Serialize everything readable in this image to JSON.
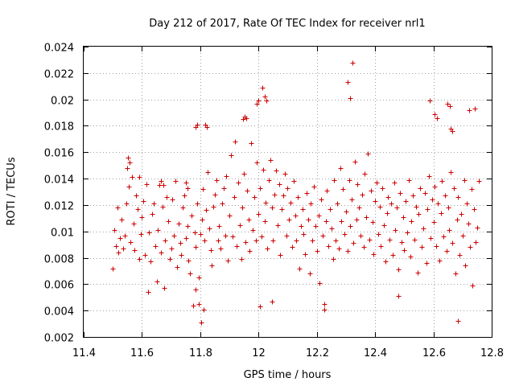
{
  "chart_data": {
    "type": "scatter",
    "title": "Day 212 of 2017, Rate Of TEC Index for receiver nrl1",
    "xlabel": "GPS time / hours",
    "ylabel": "ROTI / TECUs",
    "xlim": [
      11.4,
      12.8
    ],
    "ylim": [
      0.002,
      0.024
    ],
    "xticks": [
      11.4,
      11.6,
      11.8,
      12.0,
      12.2,
      12.4,
      12.6,
      12.8
    ],
    "xtick_labels": [
      "11.4",
      "11.6",
      "11.8",
      "12",
      "12.2",
      "12.4",
      "12.6",
      "12.8"
    ],
    "yticks": [
      0.002,
      0.004,
      0.006,
      0.008,
      0.01,
      0.012,
      0.014,
      0.016,
      0.018,
      0.02,
      0.022,
      0.024
    ],
    "ytick_labels": [
      "0.002",
      "0.004",
      "0.006",
      "0.008",
      "0.01",
      "0.012",
      "0.014",
      "0.016",
      "0.018",
      "0.02",
      "0.022",
      "0.024"
    ],
    "grid": true,
    "marker": "+",
    "color": "#cc0000",
    "series": [
      {
        "name": "nrl1",
        "x": [
          11.5,
          11.505,
          11.51,
          11.515,
          11.52,
          11.525,
          11.53,
          11.535,
          11.54,
          11.545,
          11.55,
          11.555,
          11.56,
          11.565,
          11.57,
          11.575,
          11.58,
          11.585,
          11.59,
          11.595,
          11.6,
          11.605,
          11.61,
          11.615,
          11.62,
          11.625,
          11.63,
          11.635,
          11.64,
          11.645,
          11.65,
          11.655,
          11.66,
          11.665,
          11.67,
          11.675,
          11.68,
          11.685,
          11.69,
          11.695,
          11.7,
          11.705,
          11.71,
          11.715,
          11.72,
          11.725,
          11.73,
          11.735,
          11.74,
          11.745,
          11.75,
          11.755,
          11.76,
          11.765,
          11.77,
          11.775,
          11.78,
          11.785,
          11.79,
          11.795,
          11.8,
          11.805,
          11.81,
          11.815,
          11.82,
          11.825,
          11.83,
          11.835,
          11.84,
          11.845,
          11.85,
          11.855,
          11.86,
          11.865,
          11.87,
          11.875,
          11.88,
          11.885,
          11.89,
          11.895,
          11.9,
          11.905,
          11.91,
          11.915,
          11.92,
          11.925,
          11.93,
          11.935,
          11.94,
          11.945,
          11.95,
          11.955,
          11.96,
          11.965,
          11.97,
          11.975,
          11.98,
          11.985,
          11.99,
          11.995,
          12.0,
          12.005,
          12.01,
          12.015,
          12.02,
          12.025,
          12.03,
          12.035,
          12.04,
          12.045,
          12.05,
          12.055,
          12.06,
          12.065,
          12.07,
          12.075,
          12.08,
          12.085,
          12.09,
          12.095,
          12.1,
          12.105,
          12.11,
          12.115,
          12.12,
          12.125,
          12.13,
          12.135,
          12.14,
          12.145,
          12.15,
          12.155,
          12.16,
          12.165,
          12.17,
          12.175,
          12.18,
          12.185,
          12.19,
          12.195,
          12.2,
          12.205,
          12.21,
          12.215,
          12.22,
          12.225,
          12.23,
          12.235,
          12.24,
          12.245,
          12.25,
          12.255,
          12.26,
          12.265,
          12.27,
          12.275,
          12.28,
          12.285,
          12.29,
          12.295,
          12.3,
          12.305,
          12.31,
          12.315,
          12.32,
          12.325,
          12.33,
          12.335,
          12.34,
          12.345,
          12.35,
          12.355,
          12.36,
          12.365,
          12.37,
          12.375,
          12.38,
          12.385,
          12.39,
          12.395,
          12.4,
          12.405,
          12.41,
          12.415,
          12.42,
          12.425,
          12.43,
          12.435,
          12.44,
          12.445,
          12.45,
          12.455,
          12.46,
          12.465,
          12.47,
          12.475,
          12.48,
          12.485,
          12.49,
          12.495,
          12.5,
          12.505,
          12.51,
          12.515,
          12.52,
          12.525,
          12.53,
          12.535,
          12.54,
          12.545,
          12.55,
          12.555,
          12.56,
          12.565,
          12.57,
          12.575,
          12.58,
          12.585,
          12.59,
          12.595,
          12.6,
          12.605,
          12.61,
          12.615,
          12.62,
          12.625,
          12.63,
          12.635,
          12.64,
          12.645,
          12.65,
          12.655,
          12.66,
          12.665,
          12.67,
          12.675,
          12.68,
          12.685,
          12.69,
          12.695,
          12.7,
          12.705,
          12.71,
          12.715,
          12.72,
          12.725,
          12.73,
          12.735,
          12.74,
          12.745,
          12.75,
          12.755,
          11.552,
          11.557,
          11.591,
          11.664,
          11.672,
          11.752,
          11.757,
          11.784,
          11.789,
          11.802,
          11.812,
          11.818,
          11.823,
          11.946,
          11.952,
          11.958,
          11.994,
          12.0,
          12.012,
          12.022,
          12.028,
          12.306,
          12.313,
          12.322,
          12.588,
          12.603,
          12.612,
          12.648,
          12.657,
          12.685,
          12.724,
          12.742,
          12.66,
          11.785,
          11.795,
          12.005,
          12.045,
          12.225,
          12.48,
          12.665
        ],
        "y": [
          0.0072,
          0.0101,
          0.0089,
          0.0118,
          0.0084,
          0.0095,
          0.0109,
          0.0087,
          0.0097,
          0.0121,
          0.0148,
          0.0134,
          0.0092,
          0.0141,
          0.0106,
          0.0086,
          0.0127,
          0.0117,
          0.0079,
          0.0098,
          0.0111,
          0.0123,
          0.0082,
          0.0136,
          0.0054,
          0.0099,
          0.0077,
          0.0113,
          0.0121,
          0.0089,
          0.0062,
          0.0101,
          0.0135,
          0.0084,
          0.0119,
          0.0057,
          0.0093,
          0.0126,
          0.0108,
          0.0079,
          0.0087,
          0.0124,
          0.0097,
          0.0138,
          0.0073,
          0.0106,
          0.0091,
          0.0082,
          0.0118,
          0.0127,
          0.0095,
          0.0104,
          0.0078,
          0.0068,
          0.0112,
          0.0044,
          0.0099,
          0.0088,
          0.0121,
          0.0065,
          0.0098,
          0.0109,
          0.0132,
          0.0093,
          0.0116,
          0.0145,
          0.0102,
          0.0086,
          0.0074,
          0.0119,
          0.0128,
          0.0139,
          0.0093,
          0.0104,
          0.0087,
          0.0121,
          0.0133,
          0.0097,
          0.0142,
          0.0078,
          0.0112,
          0.0158,
          0.0096,
          0.0126,
          0.0168,
          0.0089,
          0.0137,
          0.0105,
          0.0079,
          0.0118,
          0.0144,
          0.0092,
          0.0131,
          0.0109,
          0.0085,
          0.0167,
          0.0101,
          0.0126,
          0.0093,
          0.0152,
          0.0113,
          0.0133,
          0.0096,
          0.0147,
          0.0108,
          0.0122,
          0.0087,
          0.0139,
          0.0154,
          0.0118,
          0.0093,
          0.0128,
          0.0146,
          0.0105,
          0.0136,
          0.0082,
          0.0117,
          0.0127,
          0.0144,
          0.0097,
          0.0133,
          0.0109,
          0.0122,
          0.0088,
          0.0138,
          0.0112,
          0.0093,
          0.0126,
          0.0072,
          0.0104,
          0.0117,
          0.0098,
          0.0083,
          0.0129,
          0.0109,
          0.0068,
          0.0121,
          0.0093,
          0.0134,
          0.0104,
          0.0085,
          0.0112,
          0.0061,
          0.0124,
          0.0097,
          0.0045,
          0.0108,
          0.0131,
          0.0089,
          0.0117,
          0.0102,
          0.0079,
          0.0139,
          0.0093,
          0.0121,
          0.0087,
          0.0148,
          0.0108,
          0.0132,
          0.0098,
          0.0115,
          0.0085,
          0.0139,
          0.0104,
          0.0124,
          0.0091,
          0.0153,
          0.0109,
          0.0136,
          0.0118,
          0.0097,
          0.0128,
          0.0088,
          0.0144,
          0.0111,
          0.0159,
          0.0094,
          0.0131,
          0.0107,
          0.0083,
          0.0123,
          0.0137,
          0.0098,
          0.0119,
          0.0089,
          0.0133,
          0.0105,
          0.0077,
          0.0114,
          0.0126,
          0.0094,
          0.0121,
          0.0082,
          0.0137,
          0.0101,
          0.0118,
          0.0071,
          0.0129,
          0.0092,
          0.0111,
          0.0086,
          0.0123,
          0.0099,
          0.0139,
          0.0081,
          0.0108,
          0.0127,
          0.0094,
          0.0119,
          0.0069,
          0.0113,
          0.0133,
          0.0088,
          0.0102,
          0.0129,
          0.0076,
          0.0117,
          0.0142,
          0.0095,
          0.0124,
          0.0107,
          0.0134,
          0.0089,
          0.0121,
          0.0078,
          0.0114,
          0.0138,
          0.0096,
          0.0127,
          0.0085,
          0.0118,
          0.0101,
          0.0145,
          0.0091,
          0.0133,
          0.0068,
          0.0109,
          0.0126,
          0.0082,
          0.0113,
          0.0097,
          0.0139,
          0.0074,
          0.0121,
          0.0106,
          0.0088,
          0.0132,
          0.0059,
          0.0117,
          0.0092,
          0.0103,
          0.0138,
          0.0156,
          0.0152,
          0.0141,
          0.0138,
          0.0135,
          0.0137,
          0.0133,
          0.0179,
          0.0181,
          0.0031,
          0.0041,
          0.0181,
          0.0179,
          0.0185,
          0.0187,
          0.0186,
          0.0197,
          0.0199,
          0.0209,
          0.0202,
          0.0199,
          0.0213,
          0.0201,
          0.0228,
          0.0199,
          0.0189,
          0.0186,
          0.0197,
          0.0195,
          0.0032,
          0.0192,
          0.0193,
          0.0178,
          0.0056,
          0.0045,
          0.0043,
          0.0047,
          0.0041,
          0.0051,
          0.0176
        ]
      }
    ]
  }
}
